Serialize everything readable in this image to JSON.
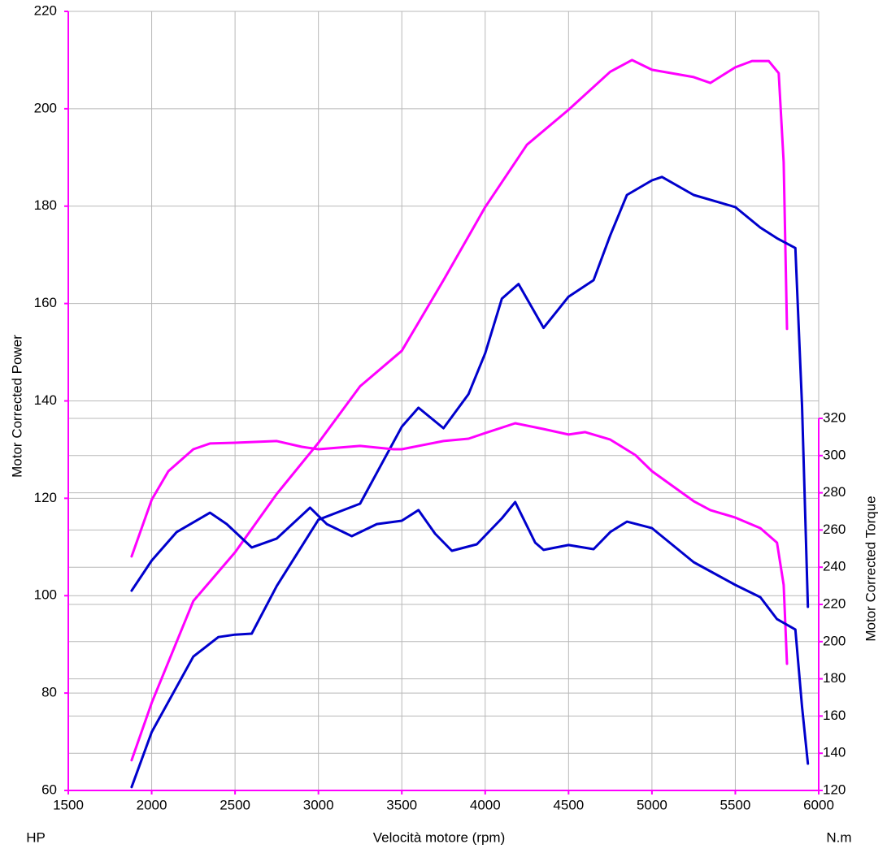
{
  "chart_data": {
    "type": "line",
    "x_label": "Velocità motore (rpm)",
    "y_label": "Motor Corrected Power",
    "y2_label": "Motor Corrected Torque",
    "y_unit": "HP",
    "y2_unit": "N.m",
    "xlim": [
      1500,
      6000
    ],
    "xticks": [
      1500,
      2000,
      2500,
      3000,
      3500,
      4000,
      4500,
      5000,
      5500,
      6000
    ],
    "ylim": [
      60,
      220
    ],
    "yticks": [
      60,
      80,
      100,
      120,
      140,
      160,
      180,
      200,
      220
    ],
    "y2lim": [
      120,
      320
    ],
    "y2ticks": [
      120,
      140,
      160,
      180,
      200,
      220,
      240,
      260,
      280,
      300,
      320
    ],
    "grid": true,
    "axis_color": "#ff00ff",
    "series": [
      {
        "color": "#ff00ff",
        "axis": "y",
        "x": [
          1880,
          2000,
          2250,
          2500,
          2750,
          3000,
          3250,
          3500,
          3750,
          4000,
          4250,
          4500,
          4750,
          4880,
          5000,
          5250,
          5350,
          5500,
          5600,
          5700,
          5760,
          5790,
          5810
        ],
        "values": [
          66.2,
          78,
          98.9,
          108.9,
          120.9,
          131.4,
          143,
          150.3,
          164.8,
          179.8,
          192.6,
          199.8,
          207.6,
          210,
          208,
          206.5,
          205.3,
          208.5,
          209.8,
          209.8,
          207.3,
          189,
          154.8
        ]
      },
      {
        "color": "#0000cc",
        "axis": "y",
        "x": [
          1880,
          2000,
          2250,
          2400,
          2500,
          2600,
          2750,
          3000,
          3250,
          3500,
          3600,
          3750,
          3900,
          4000,
          4100,
          4200,
          4350,
          4500,
          4650,
          4750,
          4850,
          5000,
          5060,
          5250,
          5500,
          5650,
          5750,
          5860,
          5900,
          5935
        ],
        "values": [
          60.7,
          72,
          87.5,
          91.5,
          92,
          92.2,
          102,
          115.6,
          118.9,
          134.7,
          138.6,
          134.4,
          141.4,
          149.8,
          161,
          164,
          155,
          161.4,
          164.8,
          174,
          182.3,
          185.3,
          186,
          182.3,
          179.8,
          175.6,
          173.4,
          171.4,
          139,
          97.7
        ]
      },
      {
        "color": "#ff00ff",
        "axis": "y2",
        "x": [
          1880,
          2000,
          2100,
          2250,
          2350,
          2500,
          2750,
          2900,
          3000,
          3250,
          3450,
          3500,
          3750,
          3900,
          4000,
          4180,
          4350,
          4500,
          4600,
          4750,
          4900,
          5000,
          5250,
          5350,
          5500,
          5650,
          5750,
          5790,
          5810
        ],
        "values": [
          245.8,
          276.3,
          291.6,
          303.4,
          306.5,
          306.9,
          307.8,
          304.7,
          303.4,
          305.2,
          303.4,
          303.4,
          307.8,
          309.1,
          312.1,
          317.4,
          314.3,
          311.3,
          312.6,
          308.6,
          300.3,
          291.6,
          275.5,
          270.7,
          266.7,
          261,
          253.2,
          230.5,
          188.1
        ]
      },
      {
        "color": "#0000cc",
        "axis": "y2",
        "x": [
          1880,
          2000,
          2150,
          2350,
          2450,
          2600,
          2750,
          2950,
          3050,
          3200,
          3350,
          3500,
          3600,
          3700,
          3800,
          3950,
          4100,
          4180,
          4300,
          4350,
          4500,
          4650,
          4750,
          4850,
          5000,
          5250,
          5500,
          5650,
          5750,
          5860,
          5900,
          5935
        ],
        "values": [
          227.4,
          243.6,
          258.9,
          269.3,
          263.2,
          250.6,
          255.4,
          272,
          263.2,
          256.7,
          263.2,
          265,
          270.7,
          258,
          248.8,
          252.3,
          266.3,
          275,
          253.2,
          249.3,
          251.9,
          249.7,
          258.9,
          264.5,
          261,
          242.7,
          230.5,
          223.9,
          212.1,
          206.5,
          165,
          134.4
        ]
      }
    ]
  }
}
